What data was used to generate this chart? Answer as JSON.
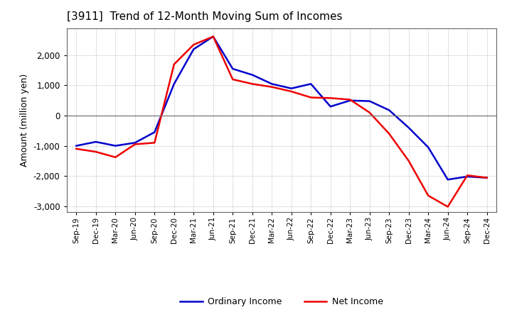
{
  "title": "[3911]  Trend of 12-Month Moving Sum of Incomes",
  "ylabel": "Amount (million yen)",
  "ylim": [
    -3200,
    2900
  ],
  "yticks": [
    -3000,
    -2000,
    -1000,
    0,
    1000,
    2000
  ],
  "background_color": "#ffffff",
  "plot_bg_color": "#ffffff",
  "grid_color": "#999999",
  "line_color_ordinary": "#0000cc",
  "line_color_net": "#ee0000",
  "legend_ordinary": "Ordinary Income",
  "legend_net": "Net Income",
  "x_labels": [
    "Sep-19",
    "Dec-19",
    "Mar-20",
    "Jun-20",
    "Sep-20",
    "Dec-20",
    "Mar-21",
    "Jun-21",
    "Sep-21",
    "Dec-21",
    "Mar-22",
    "Jun-22",
    "Sep-22",
    "Dec-22",
    "Mar-23",
    "Jun-23",
    "Sep-23",
    "Dec-23",
    "Mar-24",
    "Jun-24",
    "Sep-24",
    "Dec-24"
  ],
  "ordinary_income": [
    -1000,
    -870,
    -1000,
    -900,
    -550,
    1050,
    2200,
    2620,
    1550,
    1350,
    1050,
    900,
    1050,
    300,
    500,
    480,
    180,
    -400,
    -1050,
    -2120,
    -2020,
    -2060
  ],
  "net_income": [
    -1100,
    -1200,
    -1380,
    -950,
    -900,
    1700,
    2350,
    2620,
    1200,
    1050,
    950,
    800,
    600,
    580,
    530,
    100,
    -600,
    -1500,
    -2650,
    -3020,
    -1980,
    -2060
  ],
  "linewidth": 1.8,
  "title_fontsize": 11,
  "ylabel_fontsize": 9,
  "xtick_fontsize": 7.5,
  "ytick_fontsize": 8.5,
  "legend_fontsize": 9
}
